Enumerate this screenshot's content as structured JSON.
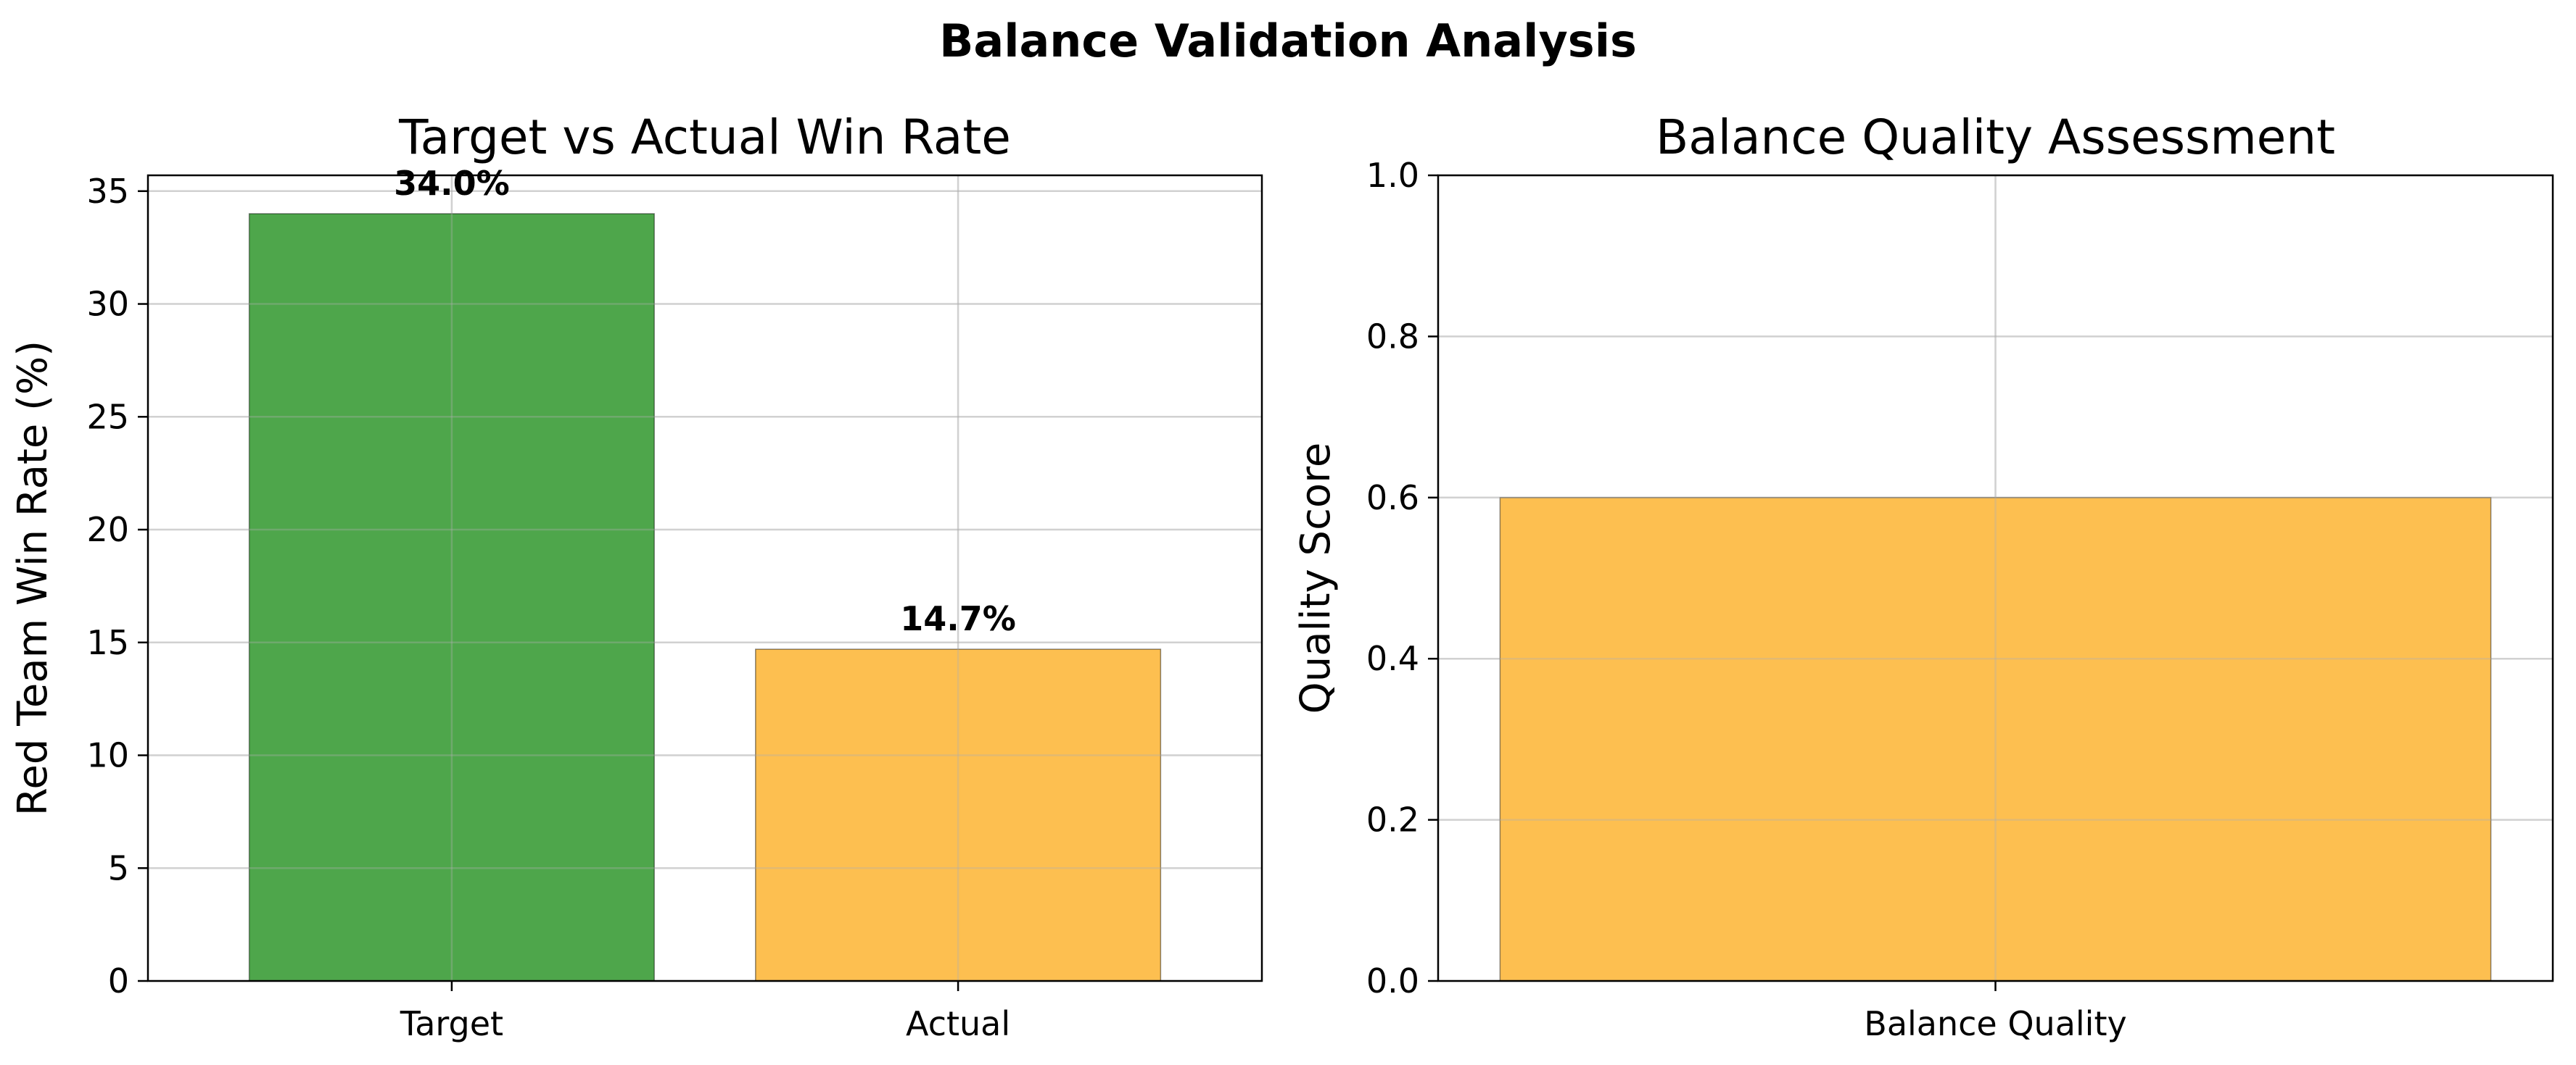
{
  "title": "Balance Validation Analysis",
  "colors": {
    "green": "#4ea64b",
    "orange": "#fdbf50",
    "text": "#000000"
  },
  "chart_data": [
    {
      "type": "bar",
      "title": "Target vs Actual Win Rate",
      "xlabel": "",
      "ylabel": "Red Team Win Rate (%)",
      "categories": [
        "Target",
        "Actual"
      ],
      "values": [
        34.0,
        14.7
      ],
      "value_labels": [
        "34.0%",
        "14.7%"
      ],
      "bar_colors": [
        "#4ea64b",
        "#fdbf50"
      ],
      "ylim": [
        0,
        35.7
      ],
      "yticks": [
        0,
        5,
        10,
        15,
        20,
        25,
        30,
        35
      ],
      "ytick_labels": [
        "0",
        "5",
        "10",
        "15",
        "20",
        "25",
        "30",
        "35"
      ],
      "grid": true,
      "legend": "none"
    },
    {
      "type": "bar",
      "title": "Balance Quality Assessment",
      "xlabel": "",
      "ylabel": "Quality Score",
      "categories": [
        "Balance Quality"
      ],
      "values": [
        0.6
      ],
      "value_labels": [],
      "bar_colors": [
        "#fdbf50"
      ],
      "ylim": [
        0,
        1.0
      ],
      "yticks": [
        0.0,
        0.2,
        0.4,
        0.6,
        0.8,
        1.0
      ],
      "ytick_labels": [
        "0.0",
        "0.2",
        "0.4",
        "0.6",
        "0.8",
        "1.0"
      ],
      "grid": true,
      "legend": "none"
    }
  ]
}
